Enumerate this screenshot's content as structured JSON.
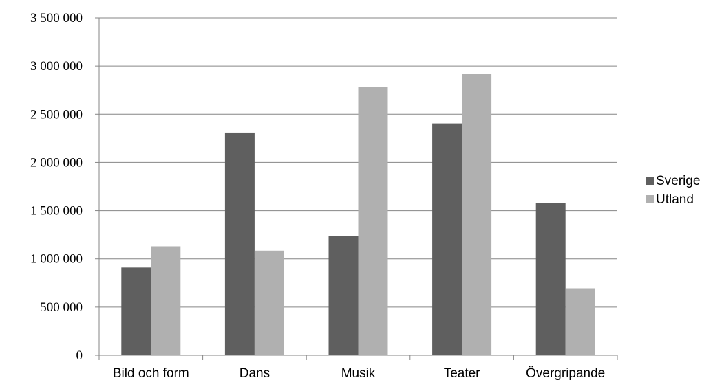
{
  "chart_data": {
    "type": "bar",
    "title": "",
    "xlabel": "",
    "ylabel": "",
    "categories": [
      "Bild och form",
      "Dans",
      "Musik",
      "Teater",
      "Övergripande"
    ],
    "series": [
      {
        "name": "Sverige",
        "color": "#5f5f5f",
        "values": [
          910000,
          2310000,
          1235000,
          2405000,
          1580000
        ]
      },
      {
        "name": "Utland",
        "color": "#b0b0b0",
        "values": [
          1130000,
          1085000,
          2780000,
          2920000,
          695000
        ]
      }
    ],
    "ylim": [
      0,
      3500000
    ],
    "yticks": [
      0,
      500000,
      1000000,
      1500000,
      2000000,
      2500000,
      3000000,
      3500000
    ],
    "ytick_labels": [
      "0",
      "500 000",
      "1 000 000",
      "1 500 000",
      "2 000 000",
      "2 500 000",
      "3 000 000",
      "3 500 000"
    ],
    "grid": "horizontal",
    "legend_position": "right"
  }
}
